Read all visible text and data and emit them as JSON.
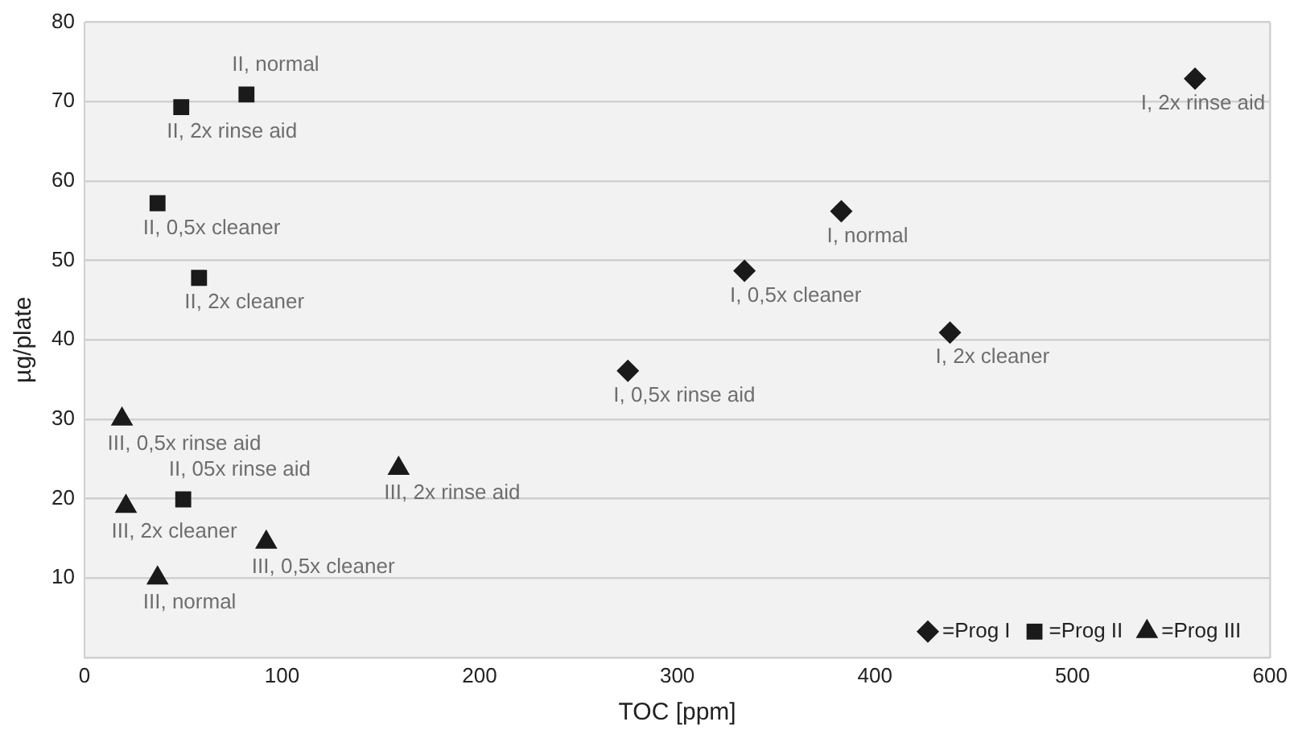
{
  "chart_data": {
    "type": "scatter",
    "xlabel": "TOC [ppm]",
    "ylabel": "µg/plate",
    "xlim": [
      0,
      600
    ],
    "xticks": [
      0,
      100,
      200,
      300,
      400,
      500,
      600
    ],
    "ylim": [
      0,
      80
    ],
    "yticks": [
      {
        "value": 0,
        "label": null
      },
      10,
      20,
      30,
      40,
      50,
      60,
      70,
      80
    ],
    "grid": "y",
    "legend": "bottom right",
    "series": [
      {
        "name": "=Prog I",
        "color": "#1a1a1a",
        "marker": "diamond",
        "x": [
          562,
          383,
          334,
          438,
          275
        ],
        "values": [
          72.9,
          56.2,
          48.7,
          40.9,
          36.1
        ]
      },
      {
        "name": "=Prog II",
        "color": "#1a1a1a",
        "marker": "square",
        "x": [
          49,
          82,
          37,
          58,
          50
        ],
        "values": [
          69.3,
          70.9,
          57.2,
          47.8,
          19.9
        ]
      },
      {
        "name": "=Prog III",
        "color": "#1a1a1a",
        "marker": "triangle",
        "x": [
          19,
          21,
          37,
          92,
          159
        ],
        "values": [
          30,
          19,
          10,
          14.5,
          23.8
        ]
      }
    ],
    "annotations": [
      {
        "text": "I, 2x rinse aid",
        "x": 562,
        "y": 72.9
      },
      {
        "text": "I, normal",
        "x": 383,
        "y": 56.2
      },
      {
        "text": "I, 0,5x cleaner",
        "x": 334,
        "y": 48.7
      },
      {
        "text": "I, 2x cleaner",
        "x": 438,
        "y": 40.9
      },
      {
        "text": "I, 0,5x rinse aid",
        "x": 275,
        "y": 36.1
      },
      {
        "text": "II, 2x rinse aid",
        "x": 49,
        "y": 69.3
      },
      {
        "text": "II, normal",
        "x": 82,
        "y": 70.9
      },
      {
        "text": "II, 0,5x cleaner",
        "x": 37,
        "y": 57.2
      },
      {
        "text": "II, 2x cleaner",
        "x": 58,
        "y": 47.8
      },
      {
        "text": "III, 0,5x rinse aid",
        "x": 19,
        "y": 30
      },
      {
        "text": "III, 2x cleaner",
        "x": 21,
        "y": 19
      },
      {
        "text": "II, 05x rinse aid",
        "x": 50,
        "y": 19.9
      },
      {
        "text": "III, normal",
        "x": 37,
        "y": 10
      },
      {
        "text": "III, 0,5x cleaner",
        "x": 92,
        "y": 14.5
      },
      {
        "text": "III, 2x rinse aid",
        "x": 159,
        "y": 23.8
      }
    ]
  }
}
